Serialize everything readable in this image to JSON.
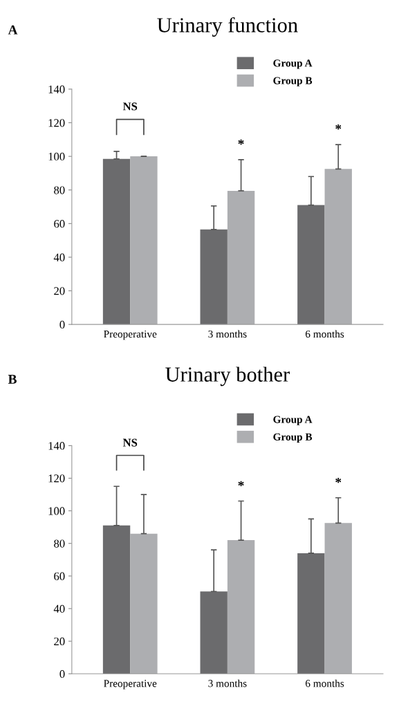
{
  "chart_data": [
    {
      "type": "bar",
      "title": "Urinary function",
      "categories": [
        "Preoperative",
        "3 months",
        "6 months"
      ],
      "series": [
        {
          "name": "Group A",
          "color": "#6b6b6d",
          "values": [
            98.5,
            56.5,
            71
          ],
          "errors": [
            [
              98.5,
              103
            ],
            [
              56.5,
              70.5
            ],
            [
              71,
              88
            ]
          ]
        },
        {
          "name": "Group B",
          "color": "#adaeb1",
          "values": [
            100,
            79.5,
            92.5
          ],
          "errors": [
            [
              100,
              100
            ],
            [
              79.5,
              98
            ],
            [
              92.5,
              107
            ]
          ]
        }
      ],
      "annotations": [
        "A",
        "NS",
        "*",
        "*"
      ],
      "ylim": [
        0,
        140
      ],
      "yticks": [
        0,
        20,
        40,
        60,
        80,
        100,
        120,
        140
      ],
      "legend": "top right",
      "grid": false
    },
    {
      "type": "bar",
      "title": "Urinary bother",
      "categories": [
        "Preoperative",
        "3 months",
        "6 months"
      ],
      "series": [
        {
          "name": "Group A",
          "color": "#6b6b6d",
          "values": [
            91,
            50.5,
            74
          ],
          "errors": [
            [
              91,
              115
            ],
            [
              50.5,
              76
            ],
            [
              74,
              95
            ]
          ]
        },
        {
          "name": "Group B",
          "color": "#adaeb1",
          "values": [
            86,
            82,
            92.5
          ],
          "errors": [
            [
              86,
              110
            ],
            [
              82,
              106
            ],
            [
              92.5,
              108
            ]
          ]
        }
      ],
      "annotations": [
        "B",
        "NS",
        "*",
        "*"
      ],
      "ylim": [
        0,
        140
      ],
      "yticks": [
        0,
        20,
        40,
        60,
        80,
        100,
        120,
        140
      ],
      "legend": "top right",
      "grid": false
    }
  ]
}
